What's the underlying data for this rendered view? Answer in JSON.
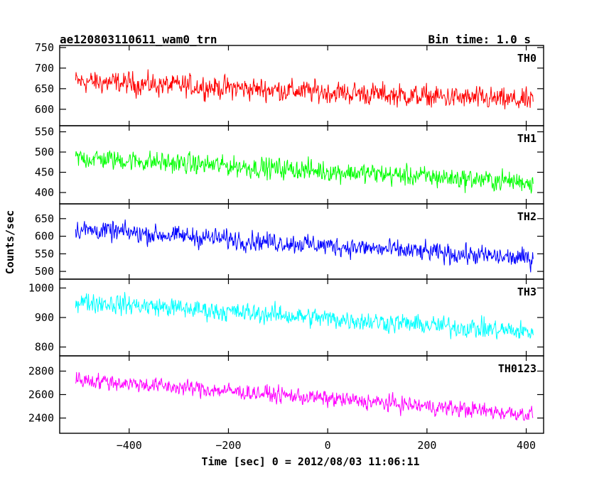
{
  "chart_data": {
    "type": "line",
    "title": "ae120803110611_wam0_trn",
    "subtitle": "Bin time: 1.0 s",
    "xlabel": "Time [sec] 0 = 2012/08/03 11:06:11",
    "ylabel": "Counts/sec",
    "xlim": [
      -540,
      435
    ],
    "x_ticks": [
      -400,
      -200,
      0,
      200,
      400
    ],
    "x_tick_labels": [
      "−400",
      "−200",
      "0",
      "200",
      "400"
    ],
    "x_data_range": [
      -508,
      414
    ],
    "bin_time_s": 1.0,
    "panels": [
      {
        "name": "TH0",
        "color": "#ff0000",
        "ylim": [
          560,
          755
        ],
        "y_ticks": [
          600,
          650,
          700,
          750
        ],
        "y_tick_labels": [
          "600",
          "650",
          "700",
          "750"
        ],
        "trend": {
          "x": [
            -508,
            414
          ],
          "y": [
            668,
            620
          ]
        },
        "noise_amplitude": 28
      },
      {
        "name": "TH1",
        "color": "#00ff00",
        "ylim": [
          372,
          565
        ],
        "y_ticks": [
          400,
          450,
          500,
          550
        ],
        "y_tick_labels": [
          "400",
          "450",
          "500",
          "550"
        ],
        "trend": {
          "x": [
            -508,
            414
          ],
          "y": [
            486,
            425
          ]
        },
        "noise_amplitude": 26
      },
      {
        "name": "TH2",
        "color": "#0000ff",
        "ylim": [
          478,
          692
        ],
        "y_ticks": [
          500,
          550,
          600,
          650
        ],
        "y_tick_labels": [
          "500",
          "550",
          "600",
          "650"
        ],
        "trend": {
          "x": [
            -508,
            414
          ],
          "y": [
            620,
            535
          ]
        },
        "noise_amplitude": 28
      },
      {
        "name": "TH3",
        "color": "#00ffff",
        "ylim": [
          770,
          1030
        ],
        "y_ticks": [
          800,
          900,
          1000
        ],
        "y_tick_labels": [
          "800",
          "900",
          "1000"
        ],
        "trend": {
          "x": [
            -508,
            414
          ],
          "y": [
            955,
            850
          ]
        },
        "noise_amplitude": 34
      },
      {
        "name": "TH0123",
        "color": "#ff00ff",
        "ylim": [
          2270,
          2930
        ],
        "y_ticks": [
          2400,
          2600,
          2800
        ],
        "y_tick_labels": [
          "2400",
          "2600",
          "2800"
        ],
        "trend": {
          "x": [
            -508,
            414
          ],
          "y": [
            2730,
            2430
          ]
        },
        "noise_amplitude": 70
      }
    ]
  }
}
